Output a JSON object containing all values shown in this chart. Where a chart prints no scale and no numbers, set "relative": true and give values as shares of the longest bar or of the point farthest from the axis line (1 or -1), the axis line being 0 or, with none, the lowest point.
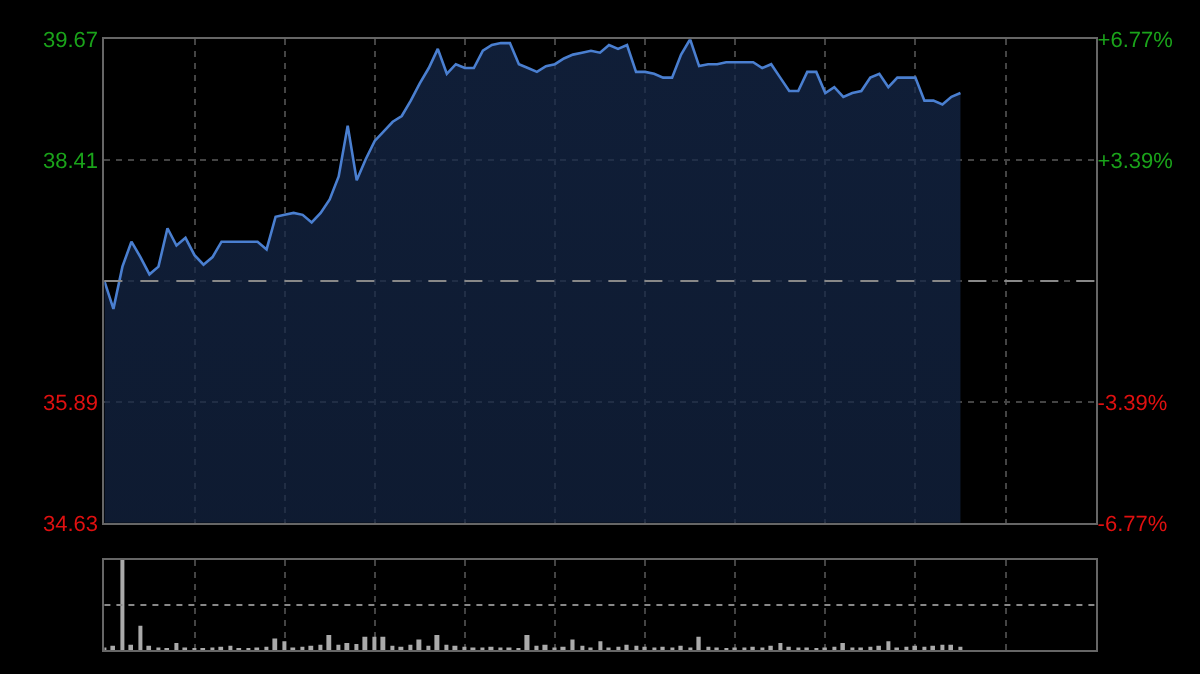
{
  "chart_data": [
    {
      "type": "area",
      "categories": [
        null,
        null,
        null,
        null,
        null,
        null,
        null,
        null,
        null,
        null,
        null,
        null,
        null,
        null,
        null,
        null,
        null,
        null,
        null,
        null,
        null,
        null,
        null,
        null,
        null,
        null,
        null,
        null,
        null,
        null,
        null,
        null,
        null,
        null,
        null,
        null,
        null,
        null,
        null,
        null,
        null,
        null,
        null,
        null,
        null,
        null,
        null,
        null,
        null,
        null,
        null,
        null,
        null,
        null,
        null,
        null,
        null,
        null,
        null,
        null,
        null,
        null,
        null,
        null,
        null,
        null,
        null,
        null,
        null,
        null,
        null,
        null,
        null,
        null,
        null,
        null,
        null,
        null,
        null,
        null,
        null,
        null,
        null,
        null,
        null,
        null,
        null,
        null,
        null,
        null,
        null,
        null,
        null,
        null,
        null,
        null,
        null,
        null,
        null,
        null,
        null,
        null,
        null,
        null,
        null,
        null,
        null,
        null,
        null,
        null,
        null
      ],
      "series": [
        {
          "color": "#4a7fd0",
          "values": [
            37.15,
            36.86,
            37.3,
            37.56,
            37.4,
            37.22,
            37.3,
            37.7,
            37.52,
            37.6,
            37.42,
            37.32,
            37.4,
            37.56,
            37.56,
            37.56,
            37.56,
            37.56,
            37.48,
            37.82,
            37.84,
            37.86,
            37.84,
            37.76,
            37.86,
            38.0,
            38.24,
            38.77,
            38.2,
            38.42,
            38.61,
            38.71,
            38.81,
            38.87,
            39.03,
            39.21,
            39.37,
            39.57,
            39.31,
            39.41,
            39.37,
            39.37,
            39.55,
            39.61,
            39.63,
            39.63,
            39.41,
            39.37,
            39.33,
            39.39,
            39.41,
            39.47,
            39.51,
            39.53,
            39.55,
            39.53,
            39.61,
            39.57,
            39.61,
            39.33,
            39.33,
            39.31,
            39.27,
            39.27,
            39.51,
            39.67,
            39.39,
            39.41,
            39.41,
            39.43,
            39.43,
            39.43,
            39.43,
            39.37,
            39.41,
            39.27,
            39.13,
            39.13,
            39.33,
            39.33,
            39.11,
            39.17,
            39.07,
            39.11,
            39.13,
            39.27,
            39.31,
            39.17,
            39.27,
            39.27,
            39.27,
            39.03,
            39.03,
            38.99,
            39.07,
            39.11,
            null,
            null,
            null,
            null,
            null,
            null,
            null,
            null,
            null,
            null,
            null,
            null,
            null,
            null,
            null
          ]
        }
      ],
      "ylim": [
        34.63,
        39.67
      ],
      "yticks": [
        34.63,
        35.89,
        {
          "value": 37.15,
          "label": null
        },
        38.41,
        39.67
      ],
      "y2lim": [
        -6.77,
        6.77
      ],
      "y2ticks": [
        {
          "value": -6.77,
          "label": "-6.77%"
        },
        {
          "value": -3.39,
          "label": "-3.39%"
        },
        {
          "value": 3.39,
          "label": "+3.39%"
        },
        {
          "value": 6.77,
          "label": "+6.77%"
        }
      ],
      "ref_lines": [
        {
          "axis": "y",
          "value": 37.15,
          "line_style": "dashed"
        }
      ],
      "grid": true,
      "tick_labels": "y"
    },
    {
      "type": "bar",
      "relative": true,
      "categories": [
        null,
        null,
        null,
        null,
        null,
        null,
        null,
        null,
        null,
        null,
        null,
        null,
        null,
        null,
        null,
        null,
        null,
        null,
        null,
        null,
        null,
        null,
        null,
        null,
        null,
        null,
        null,
        null,
        null,
        null,
        null,
        null,
        null,
        null,
        null,
        null,
        null,
        null,
        null,
        null,
        null,
        null,
        null,
        null,
        null,
        null,
        null,
        null,
        null,
        null,
        null,
        null,
        null,
        null,
        null,
        null,
        null,
        null,
        null,
        null,
        null,
        null,
        null,
        null,
        null,
        null,
        null,
        null,
        null,
        null,
        null,
        null,
        null,
        null,
        null,
        null,
        null,
        null,
        null,
        null,
        null,
        null,
        null,
        null,
        null,
        null,
        null,
        null,
        null,
        null,
        null,
        null,
        null,
        null,
        null,
        null,
        null,
        null,
        null,
        null,
        null,
        null,
        null,
        null,
        null,
        null,
        null,
        null,
        null,
        null,
        null
      ],
      "series": [
        {
          "color": "#aaaaaa",
          "values": [
            0.03,
            0.05,
            1,
            0.06,
            0.27,
            0.05,
            0.03,
            0.02,
            0.08,
            0.03,
            0.02,
            0.02,
            0.03,
            0.04,
            0.05,
            0.02,
            0.02,
            0.03,
            0.04,
            0.13,
            0.1,
            0.03,
            0.04,
            0.05,
            0.06,
            0.17,
            0.06,
            0.08,
            0.07,
            0.15,
            0.15,
            0.15,
            0.05,
            0.04,
            0.06,
            0.12,
            0.05,
            0.17,
            0.06,
            0.05,
            0.04,
            0.03,
            0.03,
            0.04,
            0.03,
            0.03,
            0.02,
            0.17,
            0.05,
            0.06,
            0.03,
            0.04,
            0.12,
            0.05,
            0.03,
            0.1,
            0.03,
            0.04,
            0.06,
            0.05,
            0.04,
            0.03,
            0.04,
            0.03,
            0.05,
            0.03,
            0.15,
            0.04,
            0.03,
            0.02,
            0.03,
            0.03,
            0.04,
            0.03,
            0.05,
            0.08,
            0.04,
            0.03,
            0.03,
            0.02,
            0.03,
            0.04,
            0.08,
            0.03,
            0.03,
            0.04,
            0.05,
            0.1,
            0.03,
            0.04,
            0.05,
            0.04,
            0.05,
            0.06,
            0.06,
            0.04,
            null,
            null,
            null,
            null,
            null,
            null,
            null,
            null,
            null,
            null,
            null,
            null,
            null,
            null,
            null
          ]
        }
      ],
      "ref_lines": [
        {
          "axis": "y",
          "value": 0.5,
          "line_style": "dotted"
        }
      ],
      "grid": "x",
      "tick_labels": false
    }
  ]
}
